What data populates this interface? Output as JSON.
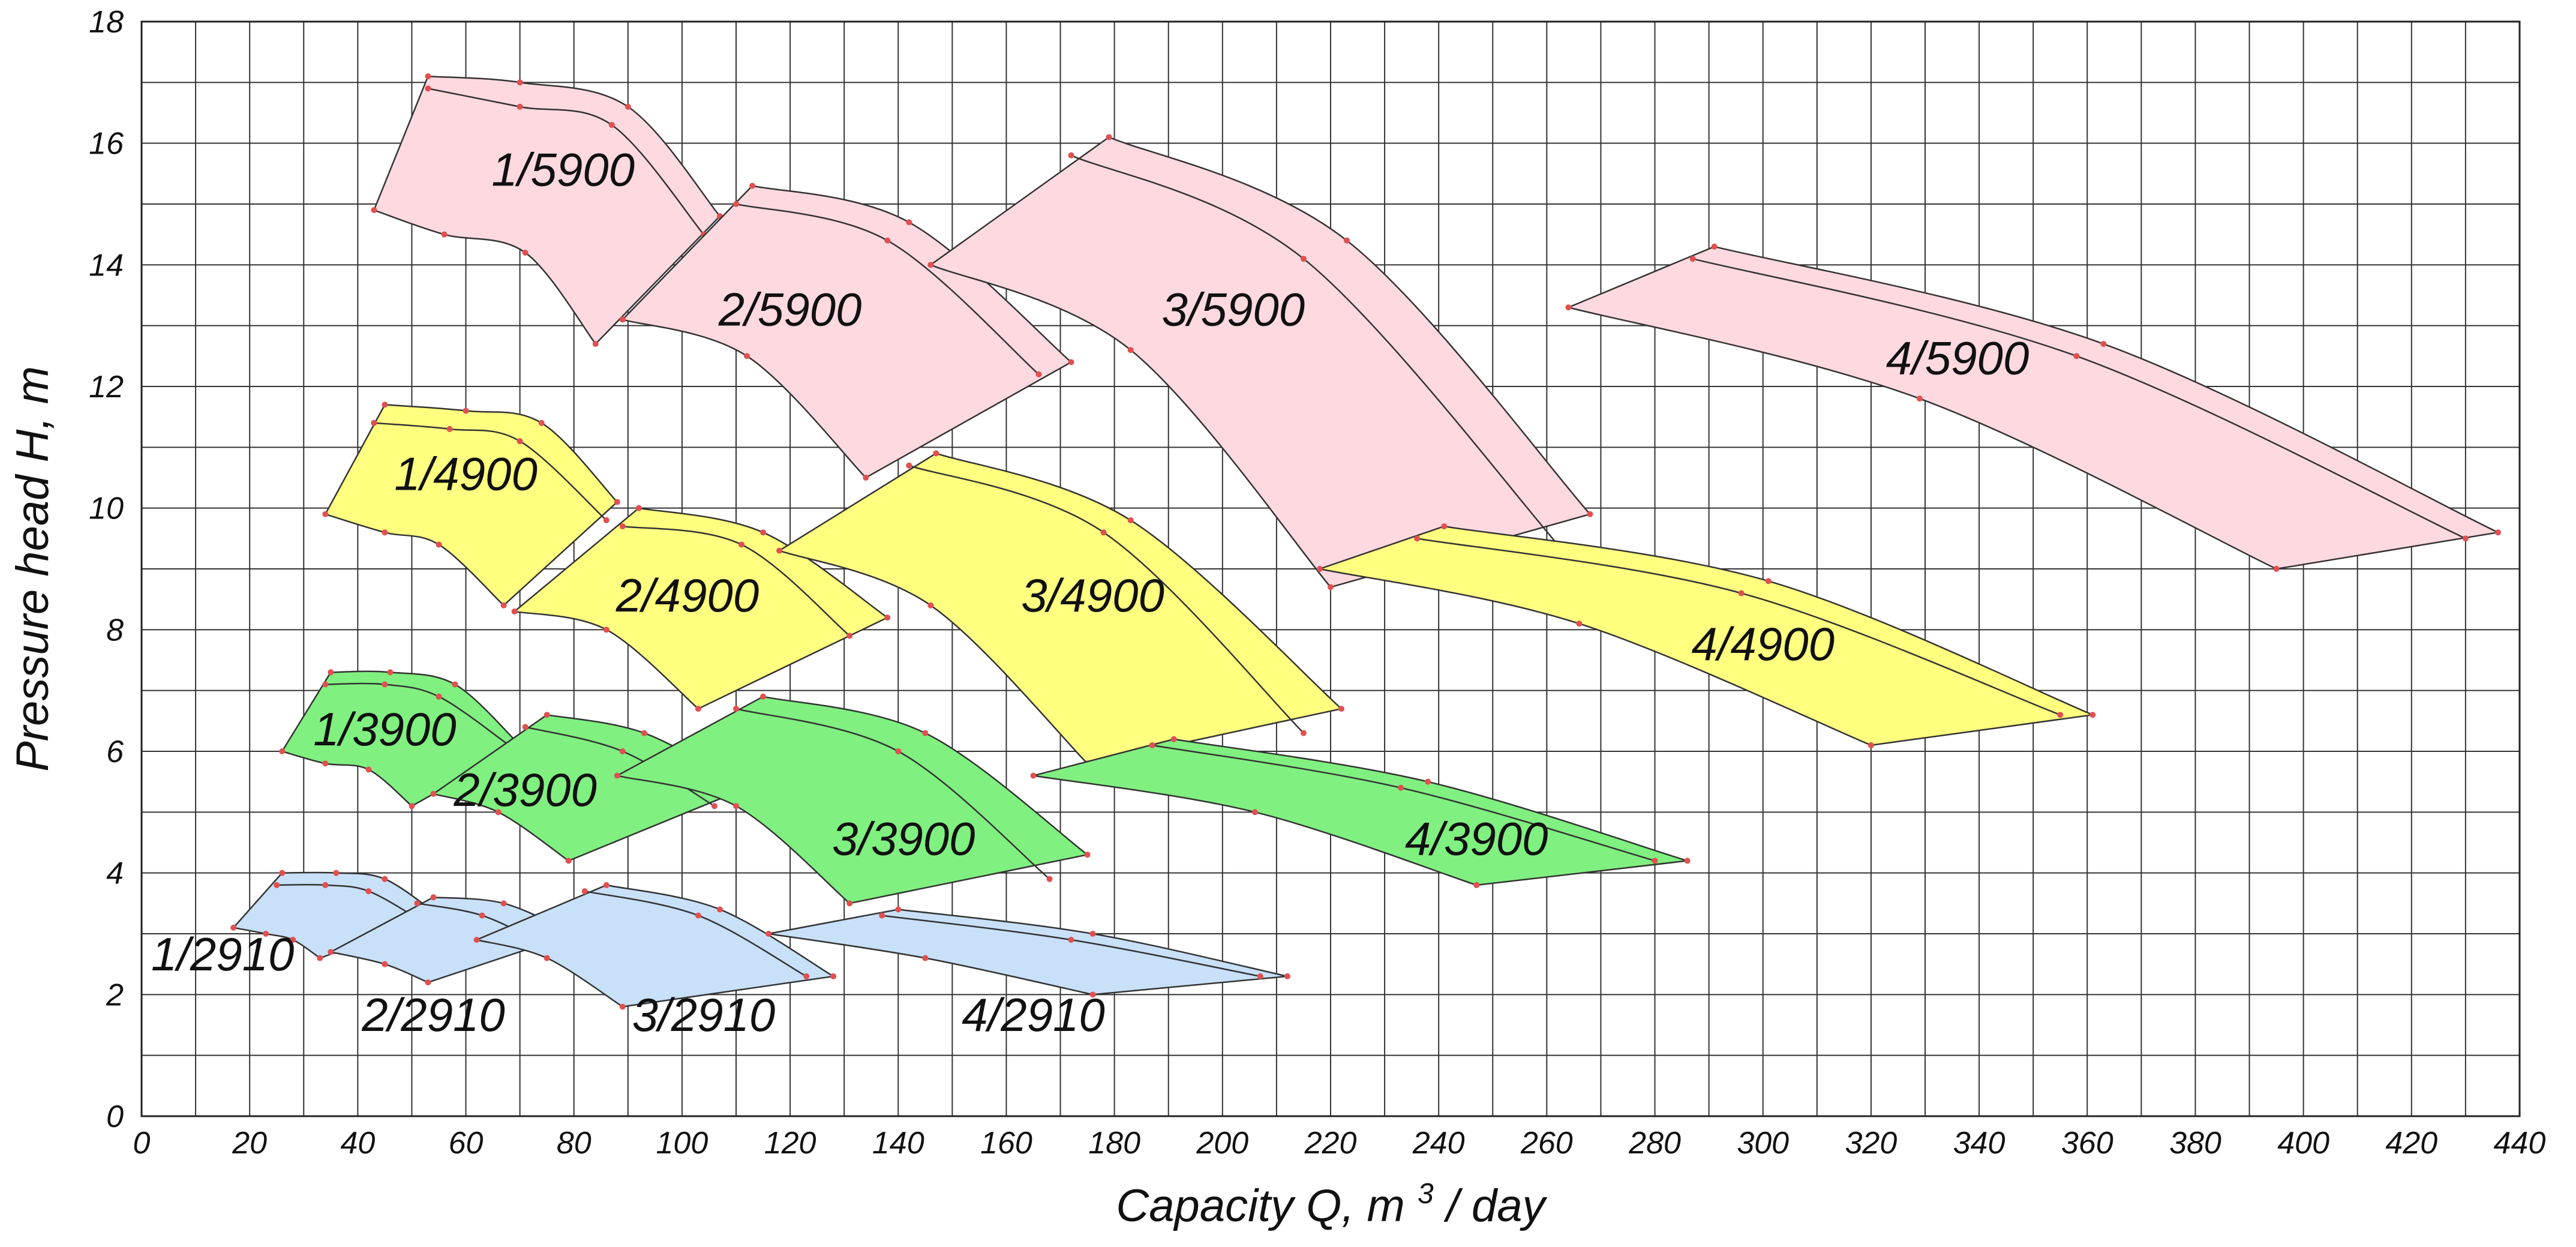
{
  "chart_data": {
    "type": "area",
    "title": "",
    "xlabel": "Capacity Q, m",
    "xlabel_superscript": "3",
    "xlabel_suffix": "/ day",
    "ylabel": "Pressure head H, m",
    "xlim": [
      0,
      440
    ],
    "ylim": [
      0,
      18
    ],
    "x_ticks": [
      0,
      20,
      40,
      60,
      80,
      100,
      120,
      140,
      160,
      180,
      200,
      220,
      240,
      260,
      280,
      300,
      320,
      340,
      360,
      380,
      400,
      420,
      440
    ],
    "y_ticks": [
      0,
      2,
      4,
      6,
      8,
      10,
      12,
      14,
      16,
      18
    ],
    "x_tick_labels": [
      "0",
      "20",
      "40",
      "60",
      "80",
      "100",
      "120",
      "140",
      "160",
      "180",
      "200",
      "220",
      "240",
      "260",
      "280",
      "300",
      "320",
      "340",
      "360",
      "380",
      "400",
      "420",
      "440"
    ],
    "y_tick_labels": [
      "0",
      "2",
      "4",
      "6",
      "8",
      "10",
      "12",
      "14",
      "16",
      "18"
    ],
    "grid": true,
    "colors": {
      "5900": "#ffd9e0",
      "4900": "#ffff80",
      "3900": "#80f080",
      "2910": "#c8e0f8",
      "marker": "#e05050",
      "line": "#333333"
    },
    "regions": [
      {
        "name": "1/5900",
        "speed": "5900",
        "label": "1/5900",
        "label_at": [
          78,
          15.3
        ],
        "upper": [
          [
            53,
            17.1
          ],
          [
            70,
            17.0
          ],
          [
            90,
            16.6
          ],
          [
            107,
            14.8
          ]
        ],
        "lower": [
          [
            43,
            14.9
          ],
          [
            56,
            14.5
          ],
          [
            71,
            14.2
          ],
          [
            84,
            12.7
          ]
        ],
        "inner": [
          [
            53,
            16.9
          ],
          [
            70,
            16.6
          ],
          [
            87,
            16.3
          ],
          [
            104,
            14.5
          ]
        ]
      },
      {
        "name": "2/5900",
        "speed": "5900",
        "label": "2/5900",
        "label_at": [
          120,
          13.0
        ],
        "upper": [
          [
            113,
            15.3
          ],
          [
            142,
            14.7
          ],
          [
            172,
            12.4
          ]
        ],
        "lower": [
          [
            89,
            13.1
          ],
          [
            112,
            12.5
          ],
          [
            134,
            10.5
          ]
        ],
        "inner": [
          [
            110,
            15.0
          ],
          [
            138,
            14.4
          ],
          [
            166,
            12.2
          ]
        ]
      },
      {
        "name": "3/5900",
        "speed": "5900",
        "label": "3/5900",
        "label_at": [
          202,
          13.0
        ],
        "upper": [
          [
            179,
            16.1
          ],
          [
            223,
            14.4
          ],
          [
            268,
            9.9
          ]
        ],
        "lower": [
          [
            146,
            14.0
          ],
          [
            183,
            12.6
          ],
          [
            220,
            8.7
          ]
        ],
        "inner": [
          [
            172,
            15.8
          ],
          [
            215,
            14.1
          ],
          [
            263,
            9.3
          ]
        ]
      },
      {
        "name": "4/5900",
        "speed": "5900",
        "label": "4/5900",
        "label_at": [
          336,
          12.2
        ],
        "upper": [
          [
            291,
            14.3
          ],
          [
            363,
            12.7
          ],
          [
            436,
            9.6
          ]
        ],
        "lower": [
          [
            264,
            13.3
          ],
          [
            329,
            11.8
          ],
          [
            395,
            9.0
          ]
        ],
        "inner": [
          [
            287,
            14.1
          ],
          [
            358,
            12.5
          ],
          [
            430,
            9.5
          ]
        ]
      },
      {
        "name": "1/4900",
        "speed": "4900",
        "label": "1/4900",
        "label_at": [
          60,
          10.3
        ],
        "upper": [
          [
            45,
            11.7
          ],
          [
            60,
            11.6
          ],
          [
            74,
            11.4
          ],
          [
            88,
            10.1
          ]
        ],
        "lower": [
          [
            34,
            9.9
          ],
          [
            45,
            9.6
          ],
          [
            55,
            9.4
          ],
          [
            67,
            8.4
          ]
        ],
        "inner": [
          [
            43,
            11.4
          ],
          [
            57,
            11.3
          ],
          [
            70,
            11.1
          ],
          [
            86,
            9.8
          ]
        ]
      },
      {
        "name": "2/4900",
        "speed": "4900",
        "label": "2/4900",
        "label_at": [
          101,
          8.3
        ],
        "upper": [
          [
            92,
            10.0
          ],
          [
            115,
            9.6
          ],
          [
            138,
            8.2
          ]
        ],
        "lower": [
          [
            69,
            8.3
          ],
          [
            86,
            8.0
          ],
          [
            103,
            6.7
          ]
        ],
        "inner": [
          [
            89,
            9.7
          ],
          [
            111,
            9.4
          ],
          [
            131,
            7.9
          ]
        ]
      },
      {
        "name": "3/4900",
        "speed": "4900",
        "label": "3/4900",
        "label_at": [
          176,
          8.3
        ],
        "upper": [
          [
            147,
            10.9
          ],
          [
            183,
            9.8
          ],
          [
            222,
            6.7
          ]
        ],
        "lower": [
          [
            118,
            9.3
          ],
          [
            146,
            8.4
          ],
          [
            175,
            5.8
          ]
        ],
        "inner": [
          [
            142,
            10.7
          ],
          [
            178,
            9.6
          ],
          [
            215,
            6.3
          ]
        ]
      },
      {
        "name": "4/4900",
        "speed": "4900",
        "label": "4/4900",
        "label_at": [
          300,
          7.5
        ],
        "upper": [
          [
            241,
            9.7
          ],
          [
            301,
            8.8
          ],
          [
            361,
            6.6
          ]
        ],
        "lower": [
          [
            218,
            9.0
          ],
          [
            266,
            8.1
          ],
          [
            320,
            6.1
          ]
        ],
        "inner": [
          [
            236,
            9.5
          ],
          [
            296,
            8.6
          ],
          [
            355,
            6.6
          ]
        ]
      },
      {
        "name": "1/3900",
        "speed": "3900",
        "label": "1/3900",
        "label_at": [
          45,
          6.1
        ],
        "upper": [
          [
            35,
            7.3
          ],
          [
            46,
            7.3
          ],
          [
            58,
            7.1
          ],
          [
            70,
            6.1
          ]
        ],
        "lower": [
          [
            26,
            6.0
          ],
          [
            34,
            5.8
          ],
          [
            42,
            5.7
          ],
          [
            50,
            5.1
          ]
        ],
        "inner": [
          [
            34,
            7.1
          ],
          [
            45,
            7.1
          ],
          [
            55,
            6.9
          ],
          [
            68,
            6.1
          ]
        ]
      },
      {
        "name": "2/3900",
        "speed": "3900",
        "label": "2/3900",
        "label_at": [
          71,
          5.1
        ],
        "upper": [
          [
            75,
            6.6
          ],
          [
            93,
            6.3
          ],
          [
            112,
            5.4
          ]
        ],
        "lower": [
          [
            54,
            5.3
          ],
          [
            66,
            5.0
          ],
          [
            79,
            4.2
          ]
        ],
        "inner": [
          [
            71,
            6.4
          ],
          [
            89,
            6.0
          ],
          [
            106,
            5.1
          ]
        ]
      },
      {
        "name": "3/3900",
        "speed": "3900",
        "label": "3/3900",
        "label_at": [
          141,
          4.3
        ],
        "upper": [
          [
            115,
            6.9
          ],
          [
            145,
            6.3
          ],
          [
            175,
            4.3
          ]
        ],
        "lower": [
          [
            88,
            5.6
          ],
          [
            110,
            5.1
          ],
          [
            131,
            3.5
          ]
        ],
        "inner": [
          [
            110,
            6.7
          ],
          [
            140,
            6.0
          ],
          [
            168,
            3.9
          ]
        ]
      },
      {
        "name": "4/3900",
        "speed": "3900",
        "label": "4/3900",
        "label_at": [
          247,
          4.3
        ],
        "upper": [
          [
            191,
            6.2
          ],
          [
            238,
            5.5
          ],
          [
            286,
            4.2
          ]
        ],
        "lower": [
          [
            165,
            5.6
          ],
          [
            206,
            5.0
          ],
          [
            247,
            3.8
          ]
        ],
        "inner": [
          [
            187,
            6.1
          ],
          [
            233,
            5.4
          ],
          [
            280,
            4.2
          ]
        ]
      },
      {
        "name": "1/2910",
        "speed": "2910",
        "label": "1/2910",
        "label_at": [
          15,
          2.4
        ],
        "upper": [
          [
            26,
            4.0
          ],
          [
            36,
            4.0
          ],
          [
            45,
            3.9
          ],
          [
            55,
            3.3
          ]
        ],
        "lower": [
          [
            17,
            3.1
          ],
          [
            23,
            3.0
          ],
          [
            28,
            2.9
          ],
          [
            33,
            2.6
          ]
        ],
        "inner": [
          [
            25,
            3.8
          ],
          [
            34,
            3.8
          ],
          [
            42,
            3.7
          ],
          [
            52,
            3.2
          ]
        ]
      },
      {
        "name": "2/2910",
        "speed": "2910",
        "label": "2/2910",
        "label_at": [
          54,
          1.4
        ],
        "upper": [
          [
            54,
            3.6
          ],
          [
            67,
            3.5
          ],
          [
            80,
            3.0
          ]
        ],
        "lower": [
          [
            35,
            2.7
          ],
          [
            45,
            2.5
          ],
          [
            53,
            2.2
          ]
        ],
        "inner": [
          [
            51,
            3.5
          ],
          [
            63,
            3.3
          ],
          [
            75,
            2.8
          ]
        ]
      },
      {
        "name": "3/2910",
        "speed": "2910",
        "label": "3/2910",
        "label_at": [
          104,
          1.4
        ],
        "upper": [
          [
            86,
            3.8
          ],
          [
            107,
            3.4
          ],
          [
            128,
            2.3
          ]
        ],
        "lower": [
          [
            62,
            2.9
          ],
          [
            75,
            2.6
          ],
          [
            89,
            1.8
          ]
        ],
        "inner": [
          [
            82,
            3.7
          ],
          [
            103,
            3.3
          ],
          [
            123,
            2.3
          ]
        ]
      },
      {
        "name": "4/2910",
        "speed": "2910",
        "label": "4/2910",
        "label_at": [
          165,
          1.4
        ],
        "upper": [
          [
            140,
            3.4
          ],
          [
            176,
            3.0
          ],
          [
            212,
            2.3
          ]
        ],
        "lower": [
          [
            116,
            3.0
          ],
          [
            145,
            2.6
          ],
          [
            176,
            2.0
          ]
        ],
        "inner": [
          [
            137,
            3.3
          ],
          [
            172,
            2.9
          ],
          [
            207,
            2.3
          ]
        ]
      }
    ]
  }
}
